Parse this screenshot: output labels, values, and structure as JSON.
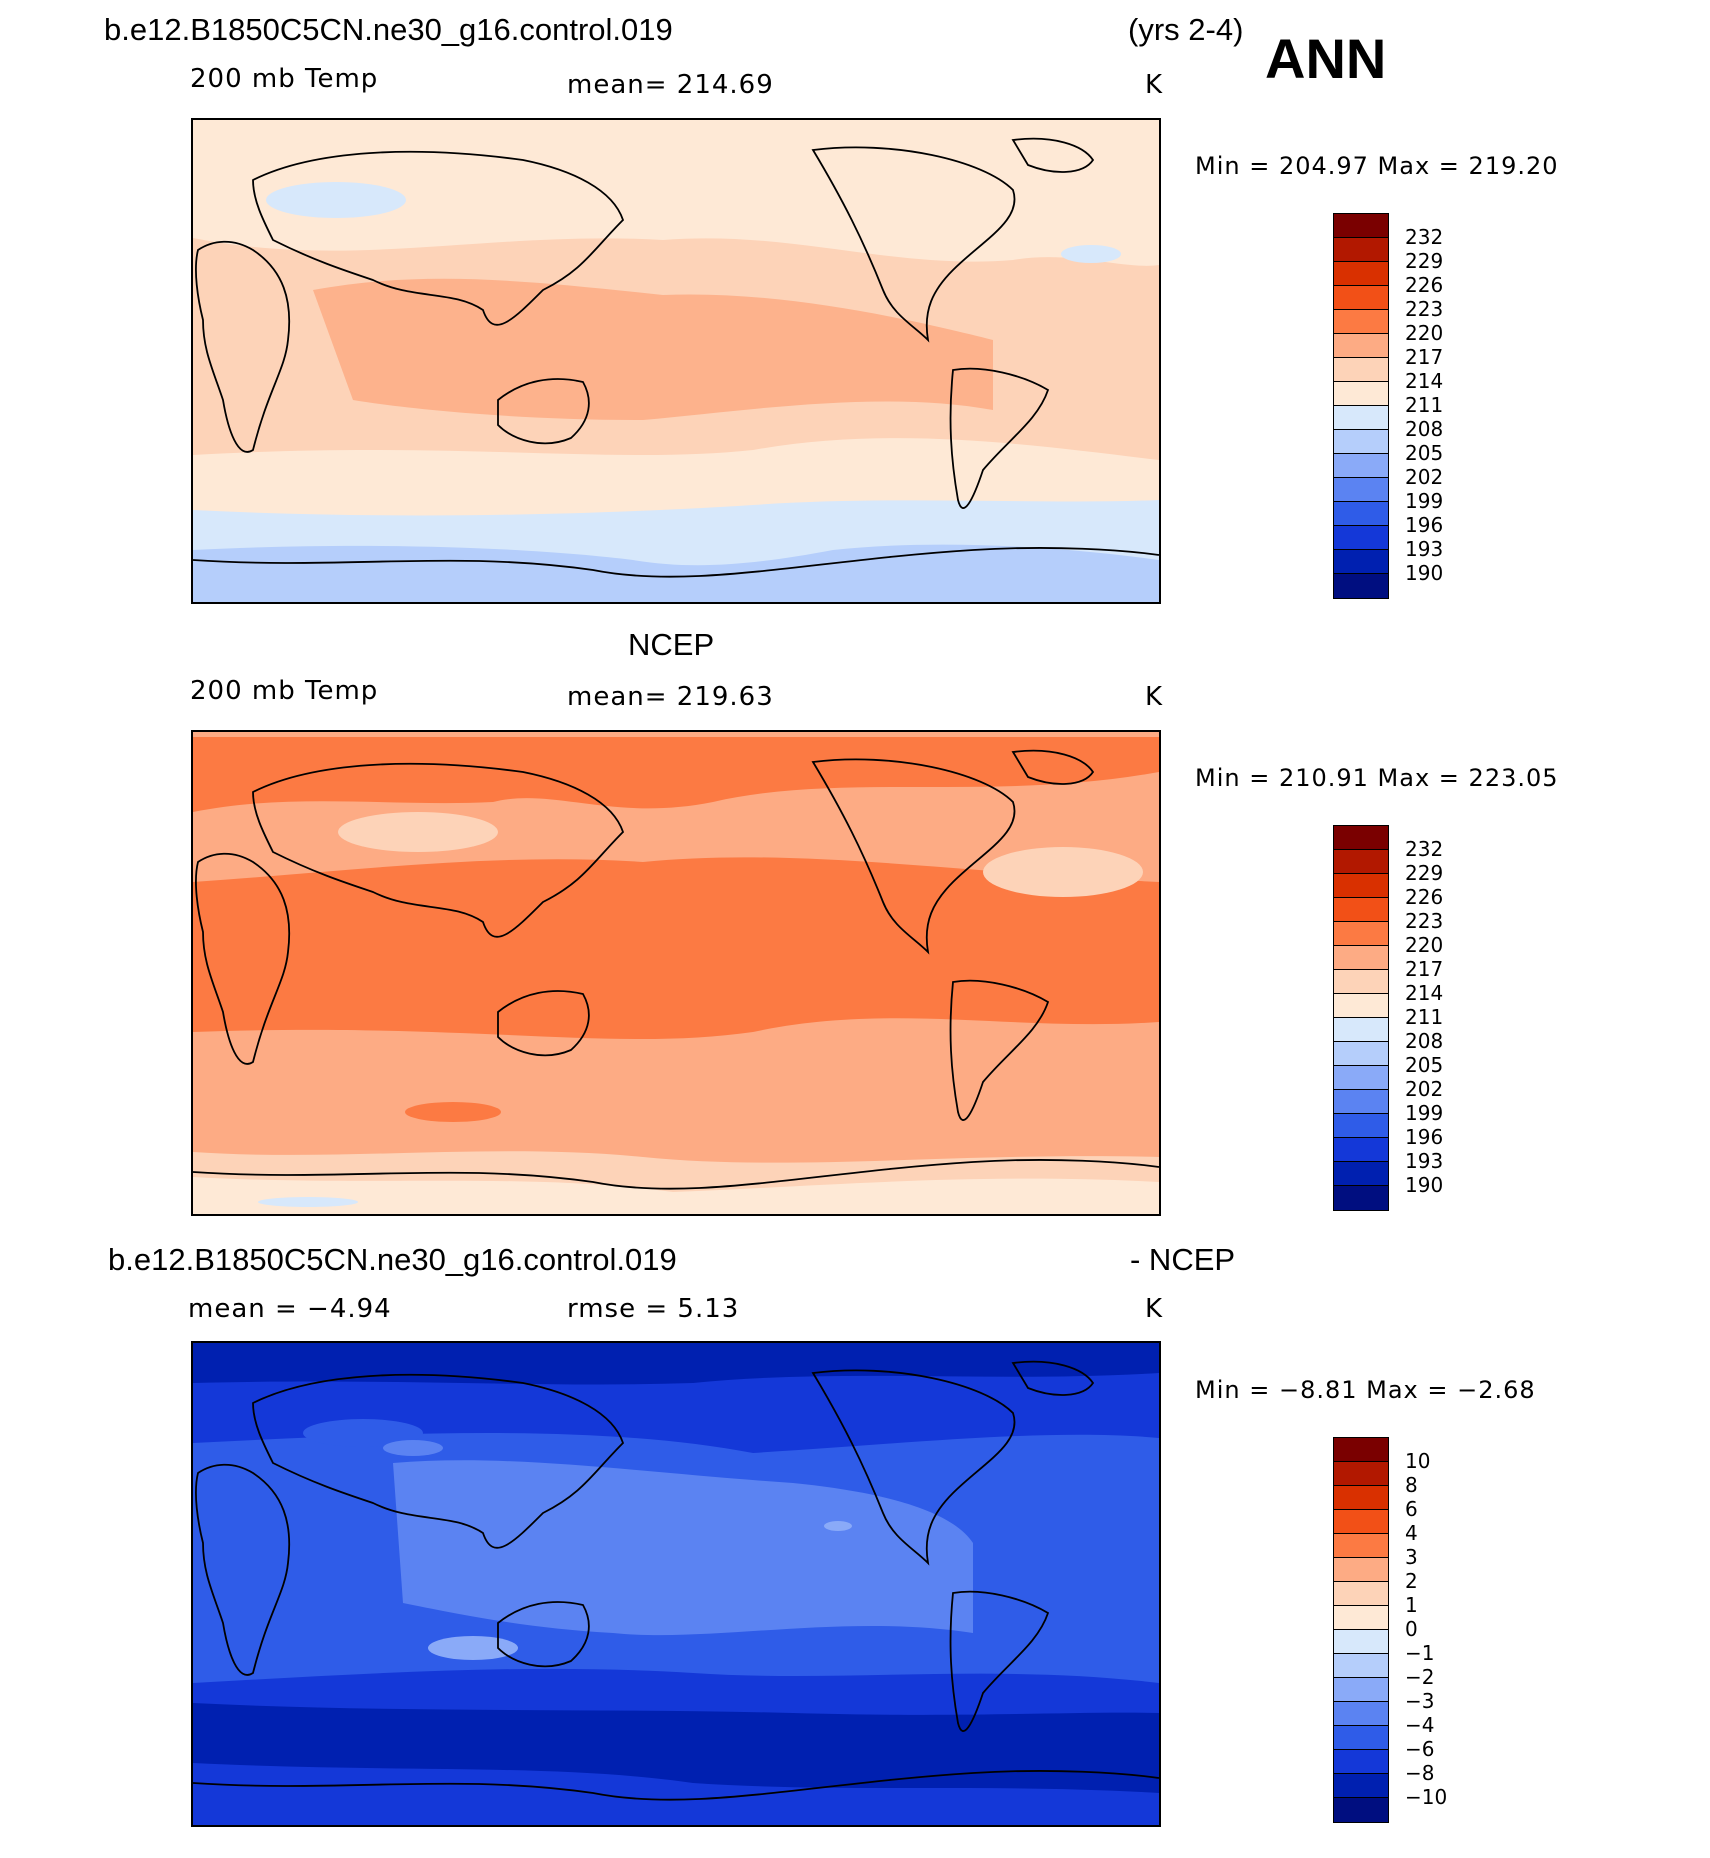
{
  "header": {
    "case_name": "b.e12.B1850C5CN.ne30_g16.control.019",
    "years": "(yrs 2-4)",
    "season": "ANN"
  },
  "panels": [
    {
      "id": "model",
      "title": "",
      "variable": "200 mb Temp",
      "stat_text": "mean=  214.69",
      "units": "K",
      "minmax": "Min  =  204.97  Max  =  219.20",
      "colorbar_labels": [
        "232",
        "229",
        "226",
        "223",
        "220",
        "217",
        "214",
        "211",
        "208",
        "205",
        "202",
        "199",
        "196",
        "193",
        "190"
      ]
    },
    {
      "id": "obs",
      "title": "NCEP",
      "variable": "200 mb Temp",
      "stat_text": "mean=  219.63",
      "units": "K",
      "minmax": "Min  =  210.91  Max  =  223.05",
      "colorbar_labels": [
        "232",
        "229",
        "226",
        "223",
        "220",
        "217",
        "214",
        "211",
        "208",
        "205",
        "202",
        "199",
        "196",
        "193",
        "190"
      ]
    },
    {
      "id": "diff",
      "title_left": "b.e12.B1850C5CN.ne30_g16.control.019",
      "title_right": "- NCEP",
      "stat_mean": "mean  =    −4.94",
      "stat_rmse": "rmse  =     5.13",
      "units": "K",
      "minmax": "Min  =    −8.81  Max  =    −2.68",
      "colorbar_labels": [
        "10",
        "8",
        "6",
        "4",
        "3",
        "2",
        "1",
        "0",
        "−1",
        "−2",
        "−3",
        "−4",
        "−6",
        "−8",
        "−10"
      ]
    }
  ],
  "colors": {
    "palette": [
      "#7a0000",
      "#b21800",
      "#d93000",
      "#f25017",
      "#fc7a43",
      "#fdab84",
      "#fdd3b8",
      "#fee9d6",
      "#d7e8fb",
      "#b5cefb",
      "#8aaaf8",
      "#5b83f2",
      "#2f5ce8",
      "#1438d8",
      "#0020b0",
      "#000e80"
    ]
  }
}
